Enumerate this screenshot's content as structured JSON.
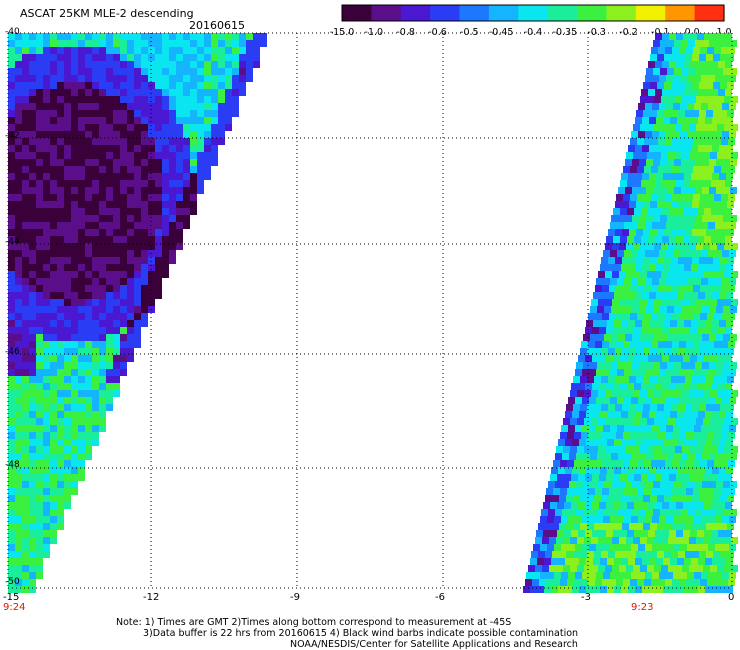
{
  "header": {
    "title": "ASCAT 25KM MLE-2 descending",
    "date": "20160615"
  },
  "colorbar": {
    "labels": [
      "-15.0",
      "-1.0",
      "-0.8",
      "-0.6",
      "-0.5",
      "-0.45",
      "-0.4",
      "-0.35",
      "-0.3",
      "-0.2",
      "-0.1",
      "0.0",
      "1.0"
    ],
    "colors": [
      "#3a003a",
      "#5a0e8a",
      "#4a18d0",
      "#2a3cf4",
      "#1e78ff",
      "#14b4ff",
      "#0ae6f0",
      "#1aee9a",
      "#3cf040",
      "#8cf01e",
      "#f0f000",
      "#ff9600",
      "#ff3010"
    ]
  },
  "axes": {
    "x_ticks": [
      "-15",
      "-12",
      "-9",
      "-6",
      "-3",
      "0"
    ],
    "y_ticks": [
      "-40",
      "-42",
      "-44",
      "-46",
      "-48",
      "-50"
    ],
    "time_labels": [
      "9:24",
      "9:23"
    ]
  },
  "notes": {
    "line1": "Note: 1) Times are GMT 2)Times along bottom correspond to measurement at -45S",
    "line2": "3)Data buffer is 22 hrs from 20160615 4) Black wind barbs indicate possible contamination",
    "line3": "NOAA/NESDIS/Center for Satellite Applications and Research"
  }
}
